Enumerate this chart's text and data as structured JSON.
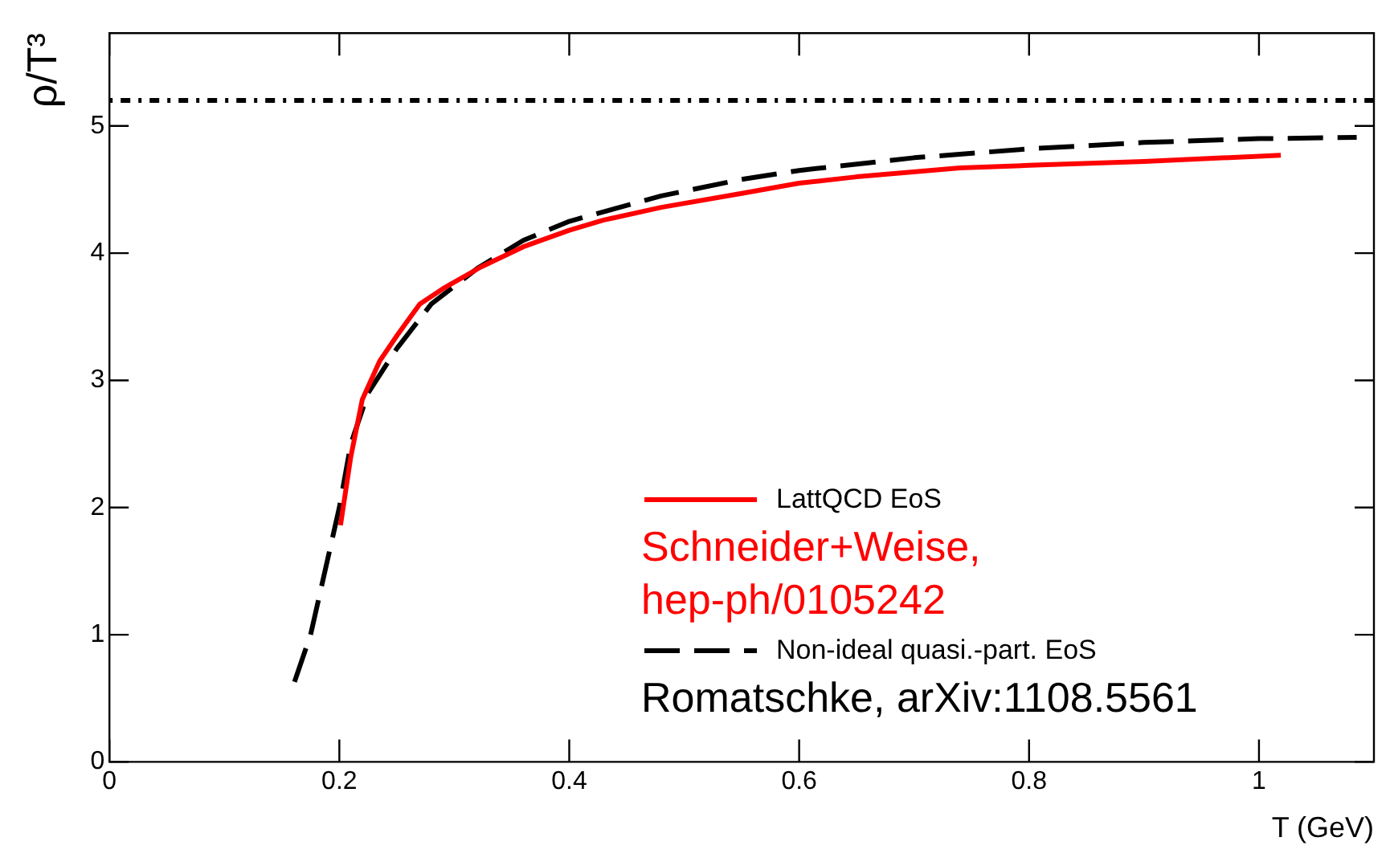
{
  "chart_data": {
    "type": "line",
    "xlabel": "T (GeV)",
    "ylabel": "ρ/T³",
    "xlim": [
      0,
      1.1
    ],
    "xticks": [
      0,
      0.2,
      0.4,
      0.6,
      0.8,
      1
    ],
    "ylim": [
      0,
      5.73
    ],
    "yticks": [
      0,
      1,
      2,
      3,
      4,
      5
    ],
    "series": [
      {
        "name": "LattQCD EoS",
        "color": "#ff0000",
        "line_style": "solid",
        "x": [
          0.201,
          0.21,
          0.22,
          0.235,
          0.25,
          0.27,
          0.29,
          0.323,
          0.36,
          0.4,
          0.43,
          0.48,
          0.55,
          0.6,
          0.65,
          0.74,
          0.8,
          0.9,
          1.019
        ],
        "values": [
          1.86,
          2.4,
          2.85,
          3.15,
          3.35,
          3.6,
          3.72,
          3.89,
          4.05,
          4.18,
          4.26,
          4.36,
          4.47,
          4.55,
          4.6,
          4.67,
          4.69,
          4.72,
          4.77
        ]
      },
      {
        "name": "Non-ideal quasi.-part. EoS",
        "color": "#000000",
        "line_style": "dashed",
        "x": [
          0.161,
          0.175,
          0.19,
          0.2,
          0.21,
          0.225,
          0.25,
          0.28,
          0.32,
          0.36,
          0.4,
          0.48,
          0.55,
          0.6,
          0.7,
          0.8,
          0.9,
          1.0,
          1.085
        ],
        "values": [
          0.63,
          1.0,
          1.6,
          2.0,
          2.5,
          2.9,
          3.25,
          3.6,
          3.88,
          4.1,
          4.25,
          4.45,
          4.58,
          4.65,
          4.75,
          4.82,
          4.87,
          4.9,
          4.91
        ]
      }
    ],
    "ref_lines": [
      {
        "axis": "y",
        "value": 5.2,
        "color": "#000000",
        "line_style": "dotted"
      }
    ],
    "annotations": [
      "Schneider+Weise, hep-ph/0105242",
      "Romatschke, arXiv:1108.5561"
    ],
    "marker": "none",
    "grid": false,
    "legend": "bottom right"
  }
}
